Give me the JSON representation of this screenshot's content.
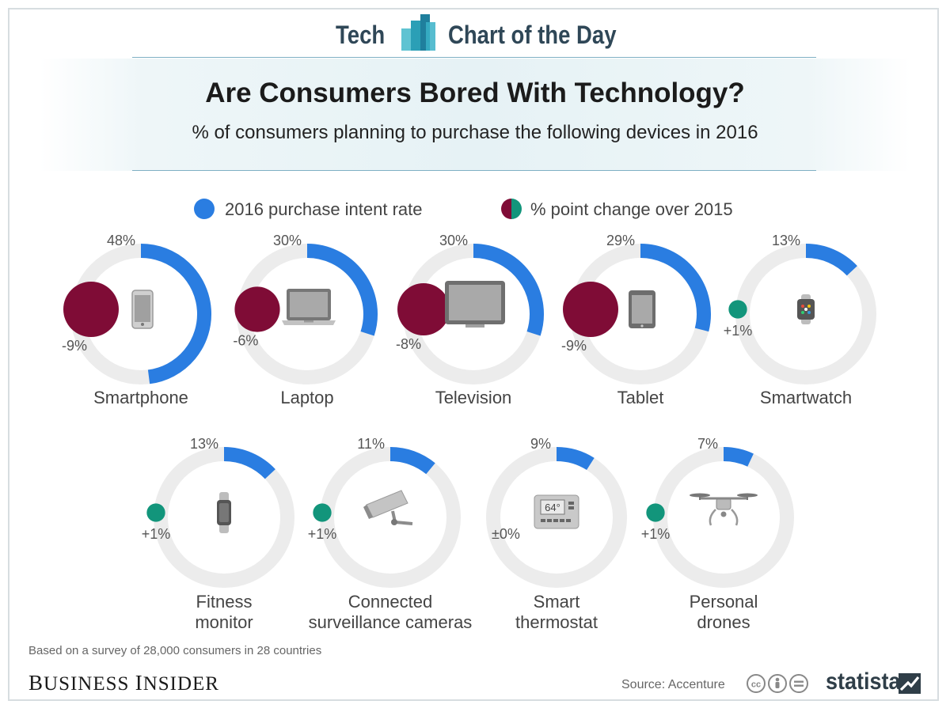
{
  "banner": {
    "left": "Tech",
    "right": "Chart of the Day"
  },
  "title": "Are Consumers Bored With Technology?",
  "subtitle": "% of consumers planning to purchase the following devices in 2016",
  "legend": {
    "intent": "2016 purchase intent rate",
    "change": "% point change over 2015"
  },
  "colors": {
    "intent": "#2a7de1",
    "ring_track": "#ececec",
    "negative": "#7f0c36",
    "positive": "#12957b",
    "banner_text": "#2f4757"
  },
  "chart_data": {
    "type": "donut",
    "categories": [
      "Smartphone",
      "Laptop",
      "Television",
      "Tablet",
      "Smartwatch",
      "Fitness monitor",
      "Connected surveillance cameras",
      "Smart thermostat",
      "Personal drones"
    ],
    "series": [
      {
        "name": "2016 purchase intent rate",
        "values": [
          48,
          30,
          30,
          29,
          13,
          13,
          11,
          9,
          7
        ],
        "labels": [
          "48%",
          "30%",
          "30%",
          "29%",
          "13%",
          "13%",
          "11%",
          "9%",
          "7%"
        ]
      },
      {
        "name": "% point change over 2015",
        "values": [
          -9,
          -6,
          -8,
          -9,
          1,
          1,
          1,
          0,
          1
        ],
        "labels": [
          "-9%",
          "-6%",
          "-8%",
          "-9%",
          "+1%",
          "+1%",
          "+1%",
          "±0%",
          "+1%"
        ]
      }
    ],
    "display_names": [
      [
        "Smartphone"
      ],
      [
        "Laptop"
      ],
      [
        "Television"
      ],
      [
        "Tablet"
      ],
      [
        "Smartwatch"
      ],
      [
        "Fitness",
        "monitor"
      ],
      [
        "Connected",
        "surveillance cameras"
      ],
      [
        "Smart",
        "thermostat"
      ],
      [
        "Personal",
        "drones"
      ]
    ],
    "icons": [
      "smartphone-icon",
      "laptop-icon",
      "television-icon",
      "tablet-icon",
      "smartwatch-icon",
      "fitness-band-icon",
      "security-camera-icon",
      "thermostat-icon",
      "drone-icon"
    ],
    "thermostat_display": "64°",
    "ylim": [
      0,
      100
    ]
  },
  "footnote": "Based on a survey of 28,000 consumers in 28 countries",
  "publisher": "Business Insider",
  "source": "Source: Accenture",
  "brand": "statista"
}
